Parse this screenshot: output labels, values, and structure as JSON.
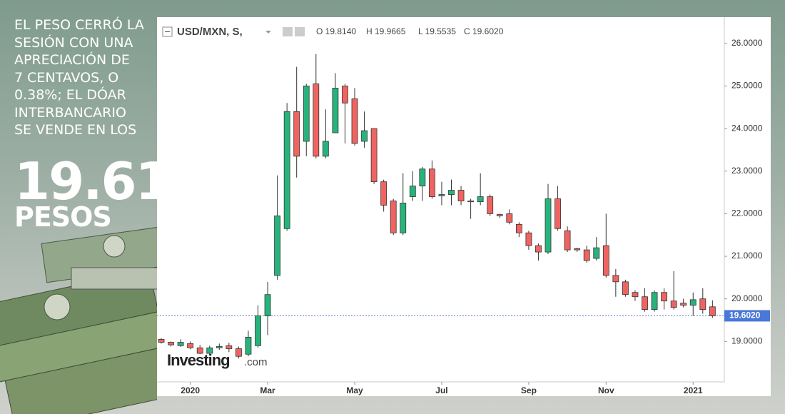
{
  "headline": {
    "lines": [
      "EL PESO CERRÓ LA",
      "SESIÓN CON UNA",
      "APRECIACIÓN DE",
      "7 CENTAVOS, O",
      "0.38%; EL DÓAR",
      "INTERBANCARIO",
      "SE VENDE EN LOS"
    ],
    "figure": "19.61",
    "unit": "PESOS"
  },
  "chart_data": {
    "type": "candlestick",
    "symbol": "USD/MXN, S,",
    "ohlc_legend": [
      "O 19.8140",
      "H 19.9665",
      "L 19.5535",
      "C 19.6020"
    ],
    "watermark": "Investing",
    "watermark_suffix": ".com",
    "up_color": "#27b47c",
    "down_color": "#ef6461",
    "categories": [
      null,
      null,
      null,
      "2020",
      null,
      null,
      null,
      null,
      null,
      null,
      null,
      "Mar",
      null,
      null,
      null,
      null,
      null,
      null,
      null,
      null,
      "May",
      null,
      null,
      null,
      null,
      null,
      null,
      null,
      null,
      "Jul",
      null,
      null,
      null,
      null,
      null,
      null,
      null,
      null,
      "Sep",
      null,
      null,
      null,
      null,
      null,
      null,
      null,
      "Nov",
      null,
      null,
      null,
      null,
      null,
      null,
      null,
      null,
      "2021",
      null,
      null
    ],
    "open": [
      19.05,
      18.98,
      18.9,
      18.95,
      18.85,
      18.72,
      18.85,
      18.9,
      18.83,
      18.7,
      18.9,
      19.6,
      20.55,
      21.65,
      24.4,
      23.7,
      25.05,
      23.35,
      23.9,
      25.0,
      24.7,
      23.7,
      24.0,
      22.75,
      22.3,
      21.55,
      22.4,
      22.65,
      23.05,
      22.42,
      22.45,
      22.55,
      22.3,
      22.28,
      22.4,
      21.98,
      22.0,
      21.75,
      21.55,
      21.25,
      21.1,
      22.35,
      21.6,
      21.18,
      21.15,
      20.95,
      21.25,
      20.55,
      20.4,
      20.15,
      20.05,
      19.75,
      20.15,
      19.95,
      19.9,
      19.85,
      20.0,
      19.814
    ],
    "high": [
      19.08,
      19.0,
      19.05,
      19.0,
      18.92,
      18.9,
      18.95,
      18.97,
      18.88,
      19.25,
      19.85,
      20.4,
      22.9,
      24.6,
      25.45,
      25.05,
      25.75,
      24.45,
      25.3,
      25.05,
      24.95,
      24.4,
      24.0,
      22.8,
      22.35,
      22.95,
      23.0,
      23.1,
      23.25,
      22.75,
      22.8,
      22.65,
      22.35,
      22.95,
      22.45,
      22.0,
      22.1,
      21.8,
      21.6,
      21.3,
      22.7,
      22.65,
      21.7,
      21.2,
      21.25,
      21.45,
      22.0,
      20.7,
      20.45,
      20.2,
      20.25,
      20.2,
      20.25,
      20.65,
      20.0,
      20.15,
      20.25,
      19.9665
    ],
    "low": [
      18.95,
      18.88,
      18.87,
      18.82,
      18.7,
      18.68,
      18.8,
      18.75,
      18.6,
      18.65,
      18.85,
      19.15,
      20.45,
      21.6,
      22.85,
      23.35,
      23.3,
      23.3,
      23.9,
      23.65,
      23.6,
      23.55,
      22.7,
      22.05,
      21.5,
      21.5,
      22.3,
      22.3,
      22.35,
      22.2,
      22.2,
      22.2,
      21.88,
      22.2,
      21.95,
      21.9,
      21.75,
      21.45,
      21.15,
      20.9,
      21.05,
      21.6,
      21.1,
      21.1,
      20.85,
      20.9,
      20.5,
      20.05,
      20.05,
      19.95,
      19.7,
      19.7,
      19.75,
      19.75,
      19.8,
      19.6,
      19.65,
      19.5535
    ],
    "close": [
      18.98,
      18.92,
      18.98,
      18.85,
      18.72,
      18.85,
      18.88,
      18.83,
      18.65,
      19.1,
      19.6,
      20.1,
      21.95,
      24.4,
      23.35,
      25.0,
      23.35,
      23.7,
      24.95,
      24.6,
      23.65,
      23.95,
      22.75,
      22.2,
      21.55,
      22.25,
      22.65,
      23.05,
      22.4,
      22.45,
      22.55,
      22.3,
      22.28,
      22.4,
      22.0,
      21.95,
      21.8,
      21.55,
      21.25,
      21.1,
      22.35,
      21.65,
      21.15,
      21.15,
      20.9,
      21.2,
      20.55,
      20.4,
      20.1,
      20.05,
      19.75,
      20.15,
      19.95,
      19.8,
      19.85,
      19.98,
      19.75,
      19.602
    ],
    "last_price": {
      "value": 19.602,
      "label": "19.6020"
    },
    "ylim": [
      18.05,
      26.55
    ],
    "yticks": [
      {
        "value": 19,
        "label": "19.0000"
      },
      {
        "value": 20,
        "label": "20.0000"
      },
      {
        "value": 21,
        "label": "21.0000"
      },
      {
        "value": 22,
        "label": "22.0000"
      },
      {
        "value": 23,
        "label": "23.0000"
      },
      {
        "value": 24,
        "label": "24.0000"
      },
      {
        "value": 25,
        "label": "25.0000"
      },
      {
        "value": 26,
        "label": "26.0000"
      }
    ]
  }
}
